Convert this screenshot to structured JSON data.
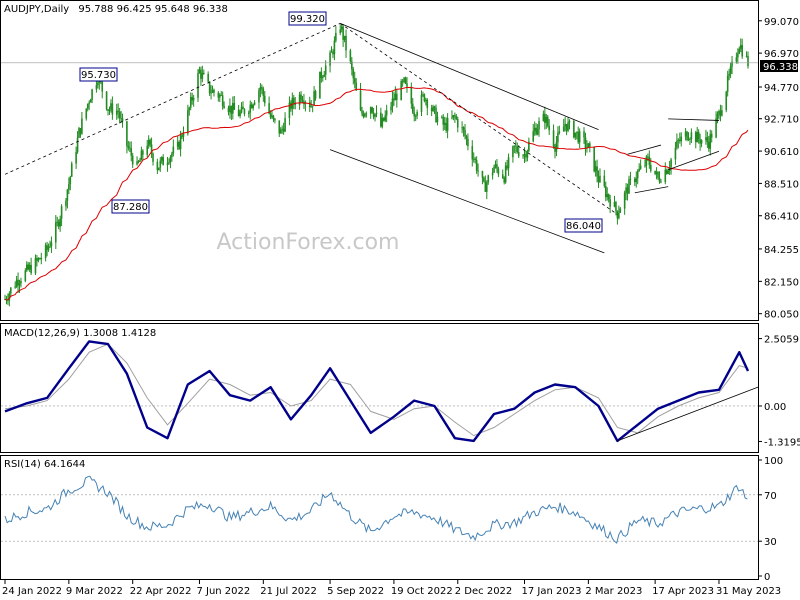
{
  "chart_data": {
    "type": "candlestick",
    "symbol_header": "AUDJPY,Daily",
    "ohlc_header": "95.788 96.425 95.648 96.338",
    "last_price": "96.338",
    "watermark": "ActionForex.com",
    "price_axis": {
      "ticks": [
        "99.070",
        "96.970",
        "94.770",
        "92.710",
        "90.610",
        "88.510",
        "86.410",
        "84.255",
        "82.150",
        "80.050"
      ],
      "ylim": [
        79.9,
        99.9
      ]
    },
    "date_axis": [
      "24 Jan 2022",
      "9 Mar 2022",
      "22 Apr 2022",
      "7 Jun 2022",
      "21 Jul 2022",
      "5 Sep 2022",
      "19 Oct 2022",
      "2 Dec 2022",
      "17 Jan 2023",
      "2 Mar 2023",
      "17 Apr 2023",
      "31 May 2023"
    ],
    "annotations": [
      "99.320",
      "95.730",
      "87.280",
      "86.040"
    ],
    "close_path": [
      {
        "d": "2022-01-24",
        "c": 81.0
      },
      {
        "d": "2022-02-01",
        "c": 82.2
      },
      {
        "d": "2022-02-08",
        "c": 82.8
      },
      {
        "d": "2022-02-15",
        "c": 83.4
      },
      {
        "d": "2022-02-22",
        "c": 84.2
      },
      {
        "d": "2022-03-01",
        "c": 85.8
      },
      {
        "d": "2022-03-09",
        "c": 88.5
      },
      {
        "d": "2022-03-16",
        "c": 91.8
      },
      {
        "d": "2022-03-23",
        "c": 94.0
      },
      {
        "d": "2022-03-29",
        "c": 95.5
      },
      {
        "d": "2022-04-05",
        "c": 93.4
      },
      {
        "d": "2022-04-12",
        "c": 93.2
      },
      {
        "d": "2022-04-18",
        "c": 91.0
      },
      {
        "d": "2022-04-25",
        "c": 89.5
      },
      {
        "d": "2022-05-02",
        "c": 91.2
      },
      {
        "d": "2022-05-09",
        "c": 89.6
      },
      {
        "d": "2022-05-16",
        "c": 90.2
      },
      {
        "d": "2022-05-23",
        "c": 90.8
      },
      {
        "d": "2022-05-30",
        "c": 93.0
      },
      {
        "d": "2022-06-07",
        "c": 95.8
      },
      {
        "d": "2022-06-14",
        "c": 94.6
      },
      {
        "d": "2022-06-21",
        "c": 94.2
      },
      {
        "d": "2022-06-28",
        "c": 93.4
      },
      {
        "d": "2022-07-05",
        "c": 93.0
      },
      {
        "d": "2022-07-12",
        "c": 93.6
      },
      {
        "d": "2022-07-19",
        "c": 94.8
      },
      {
        "d": "2022-07-26",
        "c": 92.8
      },
      {
        "d": "2022-08-02",
        "c": 91.8
      },
      {
        "d": "2022-08-09",
        "c": 93.6
      },
      {
        "d": "2022-08-16",
        "c": 94.3
      },
      {
        "d": "2022-08-23",
        "c": 93.6
      },
      {
        "d": "2022-08-30",
        "c": 95.6
      },
      {
        "d": "2022-09-05",
        "c": 96.6
      },
      {
        "d": "2022-09-12",
        "c": 98.8
      },
      {
        "d": "2022-09-19",
        "c": 96.2
      },
      {
        "d": "2022-09-26",
        "c": 93.0
      },
      {
        "d": "2022-10-03",
        "c": 93.6
      },
      {
        "d": "2022-10-10",
        "c": 92.2
      },
      {
        "d": "2022-10-19",
        "c": 94.0
      },
      {
        "d": "2022-10-26",
        "c": 95.0
      },
      {
        "d": "2022-11-02",
        "c": 93.2
      },
      {
        "d": "2022-11-09",
        "c": 94.2
      },
      {
        "d": "2022-11-16",
        "c": 93.0
      },
      {
        "d": "2022-11-23",
        "c": 92.2
      },
      {
        "d": "2022-11-30",
        "c": 92.8
      },
      {
        "d": "2022-12-06",
        "c": 91.8
      },
      {
        "d": "2022-12-13",
        "c": 90.2
      },
      {
        "d": "2022-12-20",
        "c": 88.2
      },
      {
        "d": "2022-12-27",
        "c": 89.6
      },
      {
        "d": "2023-01-03",
        "c": 89.0
      },
      {
        "d": "2023-01-10",
        "c": 90.8
      },
      {
        "d": "2023-01-17",
        "c": 90.4
      },
      {
        "d": "2023-01-24",
        "c": 92.0
      },
      {
        "d": "2023-01-31",
        "c": 92.8
      },
      {
        "d": "2023-02-07",
        "c": 91.0
      },
      {
        "d": "2023-02-14",
        "c": 92.4
      },
      {
        "d": "2023-02-21",
        "c": 91.8
      },
      {
        "d": "2023-03-02",
        "c": 90.8
      },
      {
        "d": "2023-03-09",
        "c": 88.8
      },
      {
        "d": "2023-03-16",
        "c": 87.6
      },
      {
        "d": "2023-03-22",
        "c": 86.6
      },
      {
        "d": "2023-03-29",
        "c": 88.2
      },
      {
        "d": "2023-04-05",
        "c": 89.2
      },
      {
        "d": "2023-04-12",
        "c": 90.0
      },
      {
        "d": "2023-04-19",
        "c": 88.8
      },
      {
        "d": "2023-04-26",
        "c": 89.6
      },
      {
        "d": "2023-05-03",
        "c": 91.2
      },
      {
        "d": "2023-05-10",
        "c": 91.8
      },
      {
        "d": "2023-05-17",
        "c": 91.4
      },
      {
        "d": "2023-05-24",
        "c": 91.2
      },
      {
        "d": "2023-05-31",
        "c": 93.0
      },
      {
        "d": "2023-06-07",
        "c": 95.4
      },
      {
        "d": "2023-06-14",
        "c": 97.6
      },
      {
        "d": "2023-06-20",
        "c": 96.34
      }
    ],
    "macd": {
      "header": "MACD(12,26,9) 1.3008 1.4128",
      "ticks": [
        "2.5059",
        "0.00",
        "-1.3195"
      ],
      "ylim": [
        -1.6,
        2.9
      ],
      "x": [
        "2022-01-24",
        "2022-02-08",
        "2022-02-22",
        "2022-03-09",
        "2022-03-23",
        "2022-04-05",
        "2022-04-18",
        "2022-05-02",
        "2022-05-16",
        "2022-05-30",
        "2022-06-14",
        "2022-06-28",
        "2022-07-12",
        "2022-07-26",
        "2022-08-09",
        "2022-08-23",
        "2022-09-05",
        "2022-09-19",
        "2022-10-03",
        "2022-10-19",
        "2022-11-02",
        "2022-11-16",
        "2022-11-30",
        "2022-12-13",
        "2022-12-27",
        "2023-01-10",
        "2023-01-24",
        "2023-02-07",
        "2023-02-21",
        "2023-03-09",
        "2023-03-22",
        "2023-04-05",
        "2023-04-19",
        "2023-05-03",
        "2023-05-17",
        "2023-05-31",
        "2023-06-14",
        "2023-06-20"
      ],
      "macd_values": [
        -0.2,
        0.1,
        0.3,
        1.4,
        2.4,
        2.3,
        1.2,
        -0.8,
        -1.2,
        0.8,
        1.3,
        0.4,
        0.2,
        0.7,
        -0.5,
        0.4,
        1.4,
        0.2,
        -1.0,
        -0.4,
        0.2,
        0.0,
        -1.2,
        -1.3,
        -0.3,
        -0.1,
        0.5,
        0.8,
        0.7,
        0.0,
        -1.3,
        -0.7,
        -0.1,
        0.2,
        0.5,
        0.6,
        2.0,
        1.3
      ],
      "signal_values": [
        -0.1,
        0.0,
        0.2,
        1.0,
        2.0,
        2.3,
        1.6,
        0.3,
        -0.7,
        0.1,
        1.0,
        0.8,
        0.4,
        0.5,
        0.0,
        0.2,
        1.0,
        0.8,
        -0.2,
        -0.5,
        -0.1,
        0.0,
        -0.6,
        -1.1,
        -0.8,
        -0.3,
        0.2,
        0.6,
        0.7,
        0.3,
        -0.8,
        -1.0,
        -0.4,
        0.0,
        0.3,
        0.5,
        1.5,
        1.4
      ]
    },
    "rsi": {
      "header": "RSI(14) 64.1644",
      "ticks": [
        "100",
        "70",
        "30",
        "0"
      ],
      "ylim": [
        0,
        100
      ],
      "x": [
        "2022-01-24",
        "2022-02-08",
        "2022-02-22",
        "2022-03-09",
        "2022-03-23",
        "2022-04-05",
        "2022-04-18",
        "2022-05-02",
        "2022-05-16",
        "2022-05-30",
        "2022-06-14",
        "2022-06-28",
        "2022-07-12",
        "2022-07-26",
        "2022-08-09",
        "2022-08-23",
        "2022-09-05",
        "2022-09-19",
        "2022-10-03",
        "2022-10-19",
        "2022-11-02",
        "2022-11-16",
        "2022-11-30",
        "2022-12-13",
        "2022-12-27",
        "2023-01-10",
        "2023-01-24",
        "2023-02-07",
        "2023-02-21",
        "2023-03-09",
        "2023-03-22",
        "2023-04-05",
        "2023-04-19",
        "2023-05-03",
        "2023-05-17",
        "2023-05-31",
        "2023-06-14",
        "2023-06-20"
      ],
      "values": [
        48,
        55,
        58,
        74,
        82,
        72,
        52,
        42,
        44,
        58,
        62,
        50,
        55,
        60,
        48,
        56,
        72,
        52,
        38,
        52,
        55,
        50,
        40,
        34,
        44,
        46,
        55,
        60,
        55,
        42,
        32,
        48,
        45,
        55,
        58,
        60,
        78,
        64
      ]
    },
    "colors": {
      "candle": "#228B22",
      "ma": "#dd0000",
      "macd": "#00008b",
      "signal": "#a0a0a0",
      "rsi": "#4682b4",
      "box": "#00008b"
    }
  }
}
